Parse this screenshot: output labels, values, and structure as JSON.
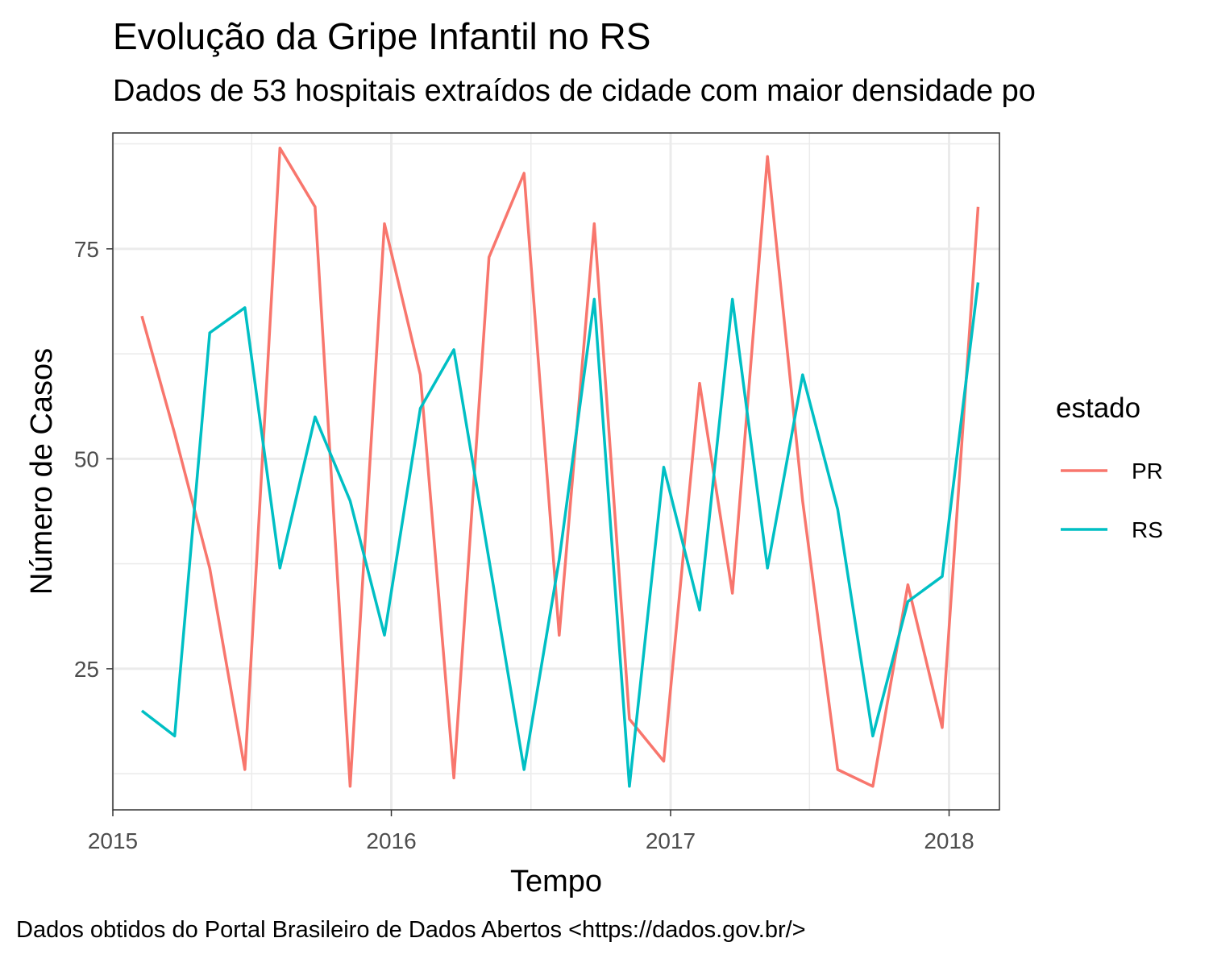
{
  "title": "Evolução da Gripe Infantil no RS",
  "subtitle": "Dados de 53 hospitais extraídos de cidade com maior densidade po",
  "caption": "Dados obtidos do Portal Brasileiro de Dados Abertos <https://dados.gov.br/>",
  "chart_data": {
    "type": "line",
    "title": "Evolução da Gripe Infantil no RS",
    "subtitle": "Dados de 53 hospitais extraídos de cidade com maior densidade po",
    "xlabel": "Tempo",
    "ylabel": "Número de Casos",
    "xlim": [
      "2015-01-01",
      "2018-03-08"
    ],
    "ylim": [
      8.2,
      88.8
    ],
    "x_ticks": [
      "2015-01-01",
      "2016-01-01",
      "2017-01-01",
      "2018-01-01"
    ],
    "x_tick_labels": [
      "2015",
      "2016",
      "2017",
      "2018"
    ],
    "y_ticks": [
      25,
      50,
      75
    ],
    "y_tick_labels": [
      "25",
      "50",
      "75"
    ],
    "y_minor_ticks": [
      12.5,
      37.5,
      62.5,
      87.5
    ],
    "x_minor_ticks": [
      "2015-07-02",
      "2016-07-02",
      "2017-07-02"
    ],
    "grid": true,
    "legend": {
      "title": "estado",
      "position": "right"
    },
    "x": [
      "2015-02-08",
      "2015-03-23",
      "2015-05-08",
      "2015-06-23",
      "2015-08-08",
      "2015-09-23",
      "2015-11-08",
      "2015-12-23",
      "2016-02-08",
      "2016-03-23",
      "2016-05-08",
      "2016-06-23",
      "2016-08-08",
      "2016-09-23",
      "2016-11-08",
      "2016-12-23",
      "2017-02-08",
      "2017-03-23",
      "2017-05-08",
      "2017-06-23",
      "2017-08-08",
      "2017-09-23",
      "2017-11-08",
      "2017-12-23",
      "2018-02-08"
    ],
    "series": [
      {
        "name": "PR",
        "color": "#F8766D",
        "values": [
          67,
          53,
          37,
          13,
          87,
          80,
          11,
          78,
          60,
          12,
          74,
          84,
          29,
          78,
          19,
          14,
          59,
          34,
          86,
          45,
          13,
          11,
          35,
          18,
          80
        ]
      },
      {
        "name": "RS",
        "color": "#00BFC4",
        "values": [
          20,
          17,
          65,
          68,
          37,
          55,
          45,
          29,
          56,
          63,
          38,
          13,
          38,
          69,
          11,
          49,
          32,
          69,
          37,
          60,
          44,
          17,
          33,
          36,
          71
        ]
      }
    ]
  }
}
